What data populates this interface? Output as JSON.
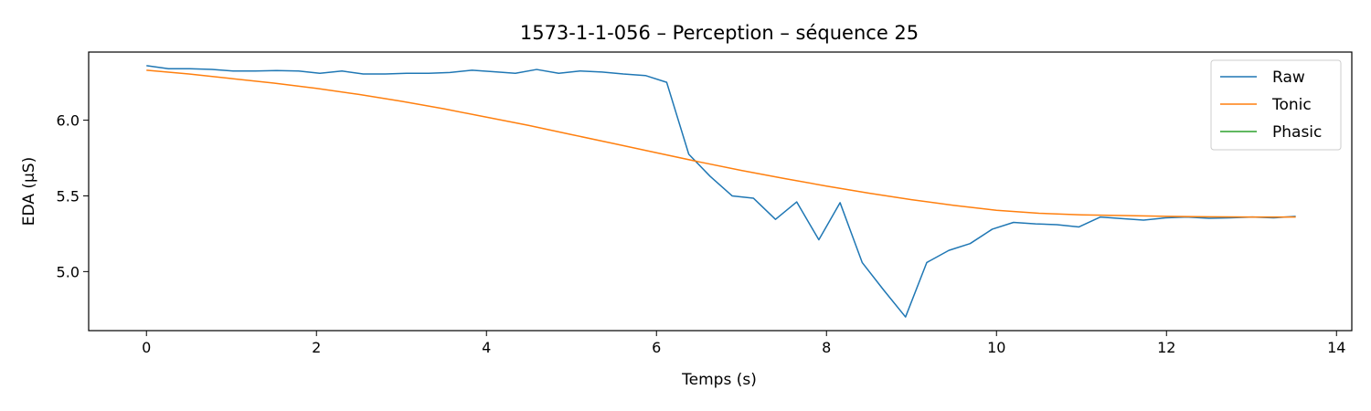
{
  "chart_data": {
    "type": "line",
    "title": "1573-1-1-056 – Perception – séquence 25",
    "xlabel": "Temps (s)",
    "ylabel": "EDA (µS)",
    "xlim": [
      -0.68,
      14.18
    ],
    "ylim": [
      4.61,
      6.45
    ],
    "xticks": [
      0,
      2,
      4,
      6,
      8,
      10,
      12,
      14
    ],
    "xtick_labels": [
      "0",
      "2",
      "4",
      "6",
      "8",
      "10",
      "12",
      "14"
    ],
    "yticks": [
      5.0,
      5.5,
      6.0
    ],
    "ytick_labels": [
      "5.0",
      "5.5",
      "6.0"
    ],
    "grid": false,
    "legend_position": "top-right",
    "series": [
      {
        "name": "Raw",
        "color": "#1f77b4",
        "x": [
          0,
          0.26,
          0.51,
          0.77,
          1.02,
          1.28,
          1.53,
          1.79,
          2.04,
          2.3,
          2.55,
          2.81,
          3.06,
          3.32,
          3.57,
          3.83,
          4.08,
          4.34,
          4.59,
          4.85,
          5.1,
          5.36,
          5.61,
          5.87,
          6.12,
          6.38,
          6.63,
          6.89,
          7.14,
          7.4,
          7.65,
          7.91,
          8.16,
          8.42,
          8.67,
          8.93,
          9.18,
          9.44,
          9.69,
          9.95,
          10.2,
          10.46,
          10.71,
          10.97,
          11.22,
          11.48,
          11.73,
          11.99,
          12.24,
          12.5,
          12.75,
          13.01,
          13.26,
          13.52
        ],
        "y": [
          6.36,
          6.34,
          6.34,
          6.335,
          6.325,
          6.325,
          6.328,
          6.325,
          6.31,
          6.325,
          6.305,
          6.305,
          6.31,
          6.31,
          6.315,
          6.33,
          6.32,
          6.31,
          6.335,
          6.31,
          6.325,
          6.318,
          6.305,
          6.295,
          6.25,
          5.775,
          5.63,
          5.5,
          5.485,
          5.345,
          5.46,
          5.21,
          5.455,
          5.06,
          4.88,
          4.7,
          5.06,
          5.14,
          5.185,
          5.28,
          5.325,
          5.315,
          5.31,
          5.295,
          5.36,
          5.35,
          5.34,
          5.355,
          5.36,
          5.352,
          5.355,
          5.36,
          5.355,
          5.365
        ]
      },
      {
        "name": "Tonic",
        "color": "#ff7f0e",
        "x": [
          0,
          0.5,
          1,
          1.5,
          2,
          2.5,
          3,
          3.5,
          4,
          4.5,
          5,
          5.5,
          6,
          6.5,
          7,
          7.5,
          8,
          8.5,
          9,
          9.5,
          10,
          10.5,
          11,
          11.5,
          12,
          12.5,
          13,
          13.52
        ],
        "y": [
          6.33,
          6.305,
          6.275,
          6.245,
          6.21,
          6.17,
          6.125,
          6.075,
          6.02,
          5.965,
          5.905,
          5.845,
          5.785,
          5.725,
          5.668,
          5.615,
          5.565,
          5.518,
          5.475,
          5.437,
          5.405,
          5.385,
          5.375,
          5.37,
          5.365,
          5.362,
          5.36,
          5.36
        ]
      },
      {
        "name": "Phasic",
        "color": "#2ca02c",
        "x": [],
        "y": []
      }
    ]
  }
}
